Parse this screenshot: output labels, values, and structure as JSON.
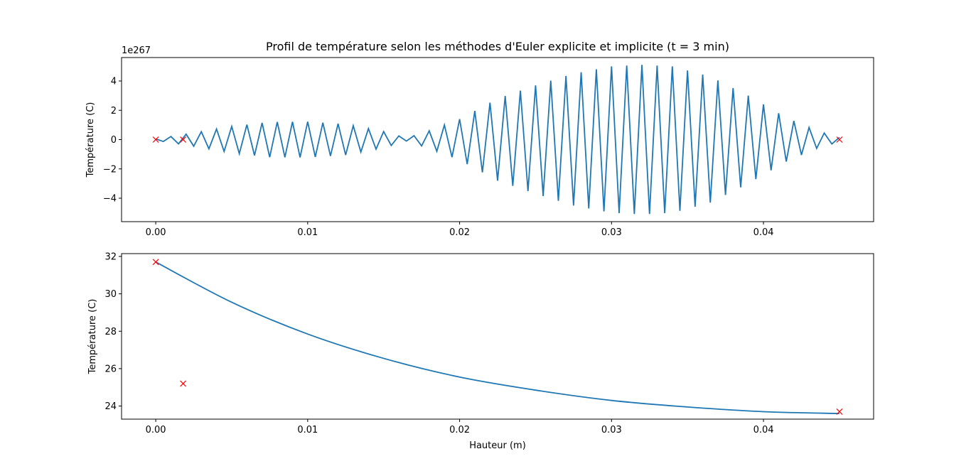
{
  "figure": {
    "title": "Profil de température selon les méthodes d'Euler explicite et implicite (t = 3 min)"
  },
  "chart_data": [
    {
      "type": "line",
      "subplot": "top",
      "title": "Profil de température selon les méthodes d'Euler explicite et implicite (t = 3 min)",
      "xlabel": "",
      "ylabel": "Température (C)",
      "offset_text": "1e267",
      "xlim": [
        -0.00225,
        0.04725
      ],
      "ylim": [
        -5.6,
        5.6
      ],
      "xticks": [
        0.0,
        0.01,
        0.02,
        0.03,
        0.04
      ],
      "xtick_labels": [
        "0.00",
        "0.01",
        "0.02",
        "0.03",
        "0.04"
      ],
      "yticks": [
        -4,
        -2,
        0,
        2,
        4
      ],
      "ytick_labels": [
        "−4",
        "−2",
        "0",
        "2",
        "4"
      ],
      "x_range": [
        0.0,
        0.045
      ],
      "point_count": 91,
      "line_color": "#1f77b4",
      "marker_color": "#ff0000",
      "grid": false,
      "series": [
        {
          "style": "line",
          "envelope_x": [
            0.0,
            0.0025,
            0.005,
            0.0075,
            0.01,
            0.0125,
            0.015,
            0.0165,
            0.018,
            0.02,
            0.0225,
            0.025,
            0.0275,
            0.03,
            0.032,
            0.034,
            0.0365,
            0.039,
            0.0415,
            0.0435,
            0.045
          ],
          "envelope_y": [
            0.05,
            0.45,
            0.9,
            1.2,
            1.22,
            1.05,
            0.55,
            0.1,
            0.6,
            1.4,
            2.8,
            3.7,
            4.5,
            5.0,
            5.1,
            5.0,
            4.3,
            3.0,
            1.5,
            0.6,
            0.15
          ]
        },
        {
          "style": "x-markers",
          "x": [
            0.0,
            0.0018,
            0.045
          ],
          "y": [
            0.0,
            0.0,
            0.0
          ]
        }
      ]
    },
    {
      "type": "line",
      "subplot": "bottom",
      "xlabel": "Hauteur (m)",
      "ylabel": "Température (C)",
      "xlim": [
        -0.00225,
        0.04725
      ],
      "ylim": [
        23.3,
        32.15
      ],
      "xticks": [
        0.0,
        0.01,
        0.02,
        0.03,
        0.04
      ],
      "xtick_labels": [
        "0.00",
        "0.01",
        "0.02",
        "0.03",
        "0.04"
      ],
      "yticks": [
        24,
        26,
        28,
        30,
        32
      ],
      "ytick_labels": [
        "24",
        "26",
        "28",
        "30",
        "32"
      ],
      "line_color": "#1f77b4",
      "marker_color": "#ff0000",
      "grid": false,
      "series": [
        {
          "style": "line",
          "x": [
            0.0,
            0.005,
            0.01,
            0.015,
            0.02,
            0.025,
            0.03,
            0.035,
            0.04,
            0.045
          ],
          "y": [
            31.7,
            29.55,
            27.85,
            26.55,
            25.55,
            24.85,
            24.3,
            23.95,
            23.7,
            23.6
          ]
        },
        {
          "style": "x-markers",
          "x": [
            0.0,
            0.0018,
            0.045
          ],
          "y": [
            31.7,
            25.2,
            23.7
          ]
        }
      ]
    }
  ]
}
